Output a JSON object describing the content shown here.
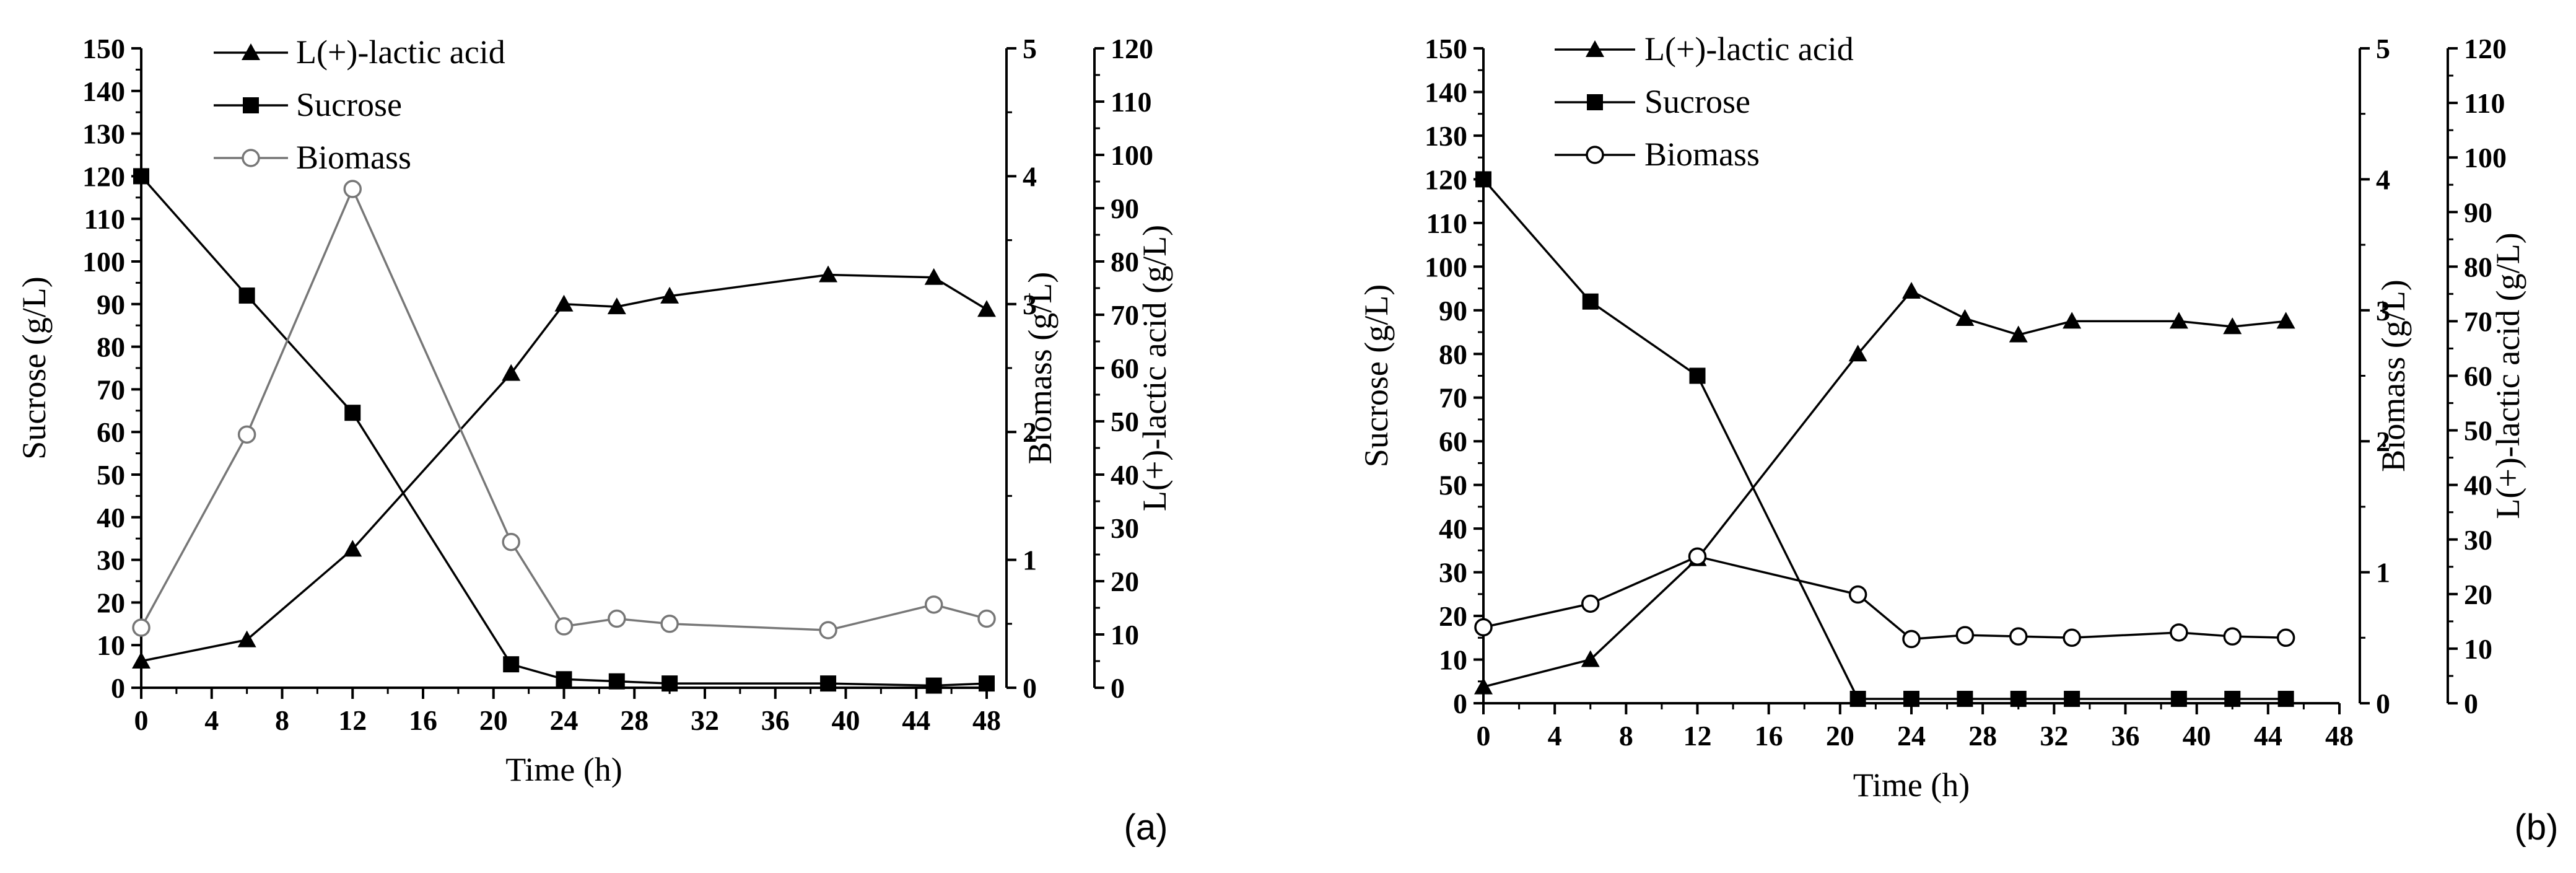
{
  "chart_data": [
    {
      "type": "line",
      "panel_label": "(a)",
      "xlabel": "Time (h)",
      "x_ticks": [
        0,
        4,
        8,
        12,
        16,
        20,
        24,
        28,
        32,
        36,
        40,
        44,
        48
      ],
      "xlim": [
        0,
        48
      ],
      "axes": [
        {
          "id": "sucrose",
          "label": "Sucrose (g/L)",
          "range": [
            0,
            150
          ],
          "ticks": [
            0,
            10,
            20,
            30,
            40,
            50,
            60,
            70,
            80,
            90,
            100,
            110,
            120,
            130,
            140,
            150
          ]
        },
        {
          "id": "biomass",
          "label": "Biomass (g/L)",
          "range": [
            0,
            5
          ],
          "ticks": [
            0,
            1,
            2,
            3,
            4,
            5
          ]
        },
        {
          "id": "lactic",
          "label": "L(+)-lactic acid (g/L)",
          "range": [
            0,
            120
          ],
          "ticks": [
            0,
            10,
            20,
            30,
            40,
            50,
            60,
            70,
            80,
            90,
            100,
            110,
            120
          ]
        }
      ],
      "series": [
        {
          "name": "L(+)-lactic acid",
          "axis": "lactic",
          "marker": "triangle",
          "x": [
            0,
            6,
            12,
            21,
            24,
            27,
            30,
            39,
            45,
            48
          ],
          "values": [
            5,
            9,
            26,
            59,
            72,
            71.5,
            73.5,
            77.5,
            77,
            71
          ]
        },
        {
          "name": "Sucrose",
          "axis": "sucrose",
          "marker": "square",
          "x": [
            0,
            6,
            12,
            21,
            24,
            27,
            30,
            39,
            45,
            48
          ],
          "values": [
            120,
            92,
            64.5,
            5.5,
            2,
            1.5,
            1,
            1,
            0.5,
            1
          ]
        },
        {
          "name": "Biomass",
          "axis": "biomass",
          "marker": "circle-open",
          "x": [
            0,
            6,
            12,
            21,
            24,
            27,
            30,
            39,
            45,
            48
          ],
          "values": [
            0.47,
            1.98,
            3.9,
            1.14,
            0.48,
            0.54,
            0.5,
            0.45,
            0.65,
            0.54
          ]
        }
      ]
    },
    {
      "type": "line",
      "panel_label": "(b)",
      "xlabel": "Time (h)",
      "x_ticks": [
        0,
        4,
        8,
        12,
        16,
        20,
        24,
        28,
        32,
        36,
        40,
        44,
        48
      ],
      "xlim": [
        0,
        48
      ],
      "axes": [
        {
          "id": "sucrose",
          "label": "Sucrose (g/L)",
          "range": [
            0,
            150
          ],
          "ticks": [
            0,
            10,
            20,
            30,
            40,
            50,
            60,
            70,
            80,
            90,
            100,
            110,
            120,
            130,
            140,
            150
          ]
        },
        {
          "id": "biomass",
          "label": "Biomass (g/L)",
          "range": [
            0,
            5
          ],
          "ticks": [
            0,
            1,
            2,
            3,
            4,
            5
          ]
        },
        {
          "id": "lactic",
          "label": "L(+)-lactic acid (g/L)",
          "range": [
            0,
            120
          ],
          "ticks": [
            0,
            10,
            20,
            30,
            40,
            50,
            60,
            70,
            80,
            90,
            100,
            110,
            120
          ]
        }
      ],
      "series": [
        {
          "name": "L(+)-lactic acid",
          "axis": "lactic",
          "marker": "triangle",
          "x": [
            0,
            6,
            12,
            21,
            24,
            27,
            30,
            33,
            39,
            42,
            45
          ],
          "values": [
            3,
            8,
            26.5,
            64,
            75.5,
            70.5,
            67.5,
            70,
            70,
            69,
            70
          ]
        },
        {
          "name": "Sucrose",
          "axis": "sucrose",
          "marker": "square",
          "x": [
            0,
            6,
            12,
            21,
            24,
            27,
            30,
            33,
            39,
            42,
            45
          ],
          "values": [
            120,
            92,
            75,
            1,
            1,
            1,
            1,
            1,
            1,
            1,
            1
          ]
        },
        {
          "name": "Biomass",
          "axis": "biomass",
          "marker": "circle-open",
          "x": [
            0,
            6,
            12,
            21,
            24,
            27,
            30,
            33,
            39,
            42,
            45
          ],
          "values": [
            0.58,
            0.76,
            1.12,
            0.83,
            0.49,
            0.52,
            0.51,
            0.5,
            0.54,
            0.51,
            0.5
          ]
        }
      ]
    }
  ]
}
